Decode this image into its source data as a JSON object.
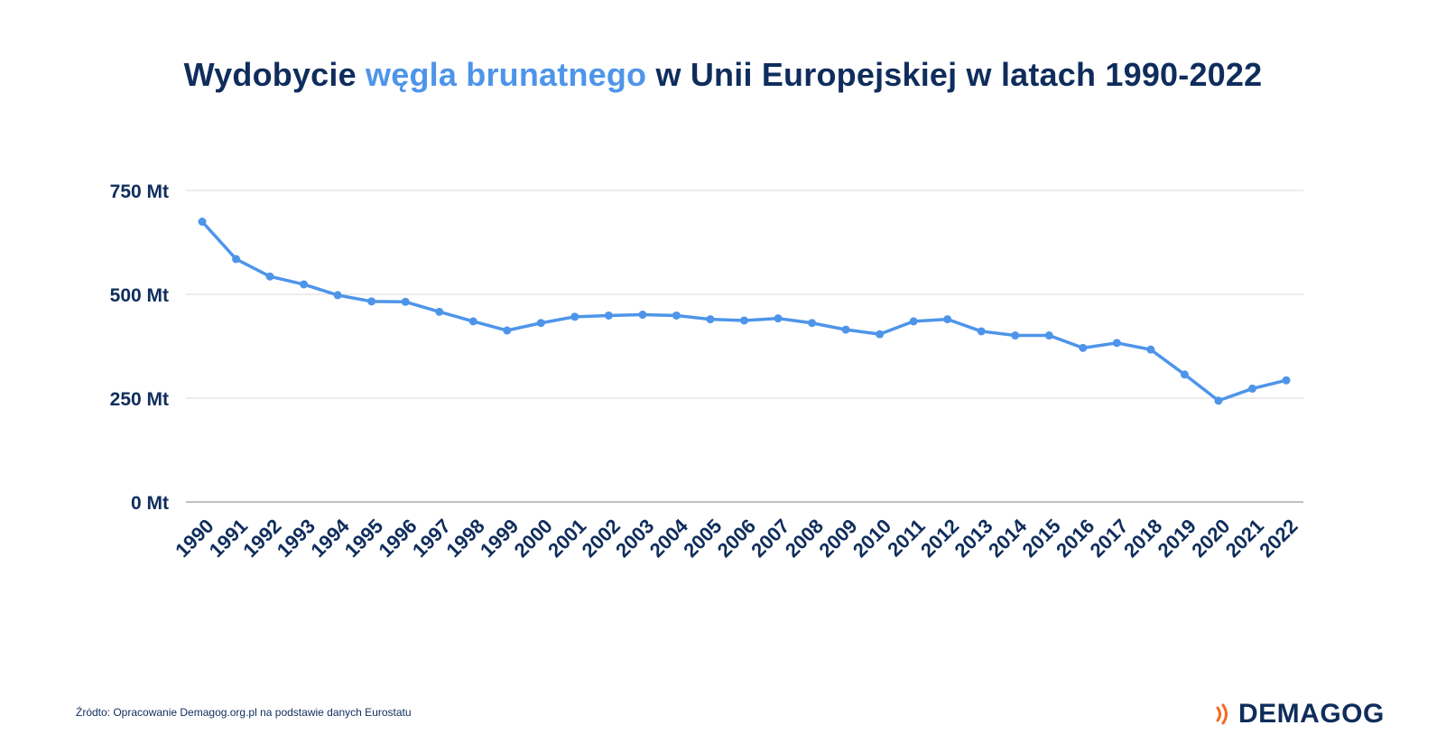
{
  "title": {
    "part1": "Wydobycie ",
    "highlight": "węgla brunatnego",
    "part2": " w Unii Europejskiej w latach 1990-2022"
  },
  "source": "Źródto: Opracowanie Demagog.org.pl na podstawie danych Eurostatu",
  "logo": {
    "text": "DEMAGOG",
    "icon": "signal-waves-icon"
  },
  "colors": {
    "title": "#0f2d5c",
    "highlight": "#4e95ea",
    "line": "#4e95ea",
    "grid": "#d9d9d9",
    "axis": "#808080",
    "logo_icon": "#f26a21"
  },
  "chart_data": {
    "type": "line",
    "title": "Wydobycie węgla brunatnego w Unii Europejskiej w latach 1990-2022",
    "xlabel": "",
    "ylabel": "",
    "categories": [
      "1990",
      "1991",
      "1992",
      "1993",
      "1994",
      "1995",
      "1996",
      "1997",
      "1998",
      "1999",
      "2000",
      "2001",
      "2002",
      "2003",
      "2004",
      "2005",
      "2006",
      "2007",
      "2008",
      "2009",
      "2010",
      "2011",
      "2012",
      "2013",
      "2014",
      "2015",
      "2016",
      "2017",
      "2018",
      "2019",
      "2020",
      "2021",
      "2022"
    ],
    "series": [
      {
        "values": [
          675,
          585,
          543,
          524,
          498,
          483,
          482,
          458,
          435,
          413,
          431,
          446,
          449,
          451,
          449,
          440,
          437,
          442,
          431,
          415,
          404,
          435,
          440,
          411,
          401,
          401,
          371,
          383,
          367,
          307,
          244,
          273,
          293
        ]
      }
    ],
    "ylim": [
      0,
      750
    ],
    "yticks": [
      0,
      250,
      500,
      750
    ],
    "ytick_labels": [
      "0 Mt",
      "250 Mt",
      "500 Mt",
      "750 Mt"
    ],
    "grid": true,
    "legend": "none"
  }
}
